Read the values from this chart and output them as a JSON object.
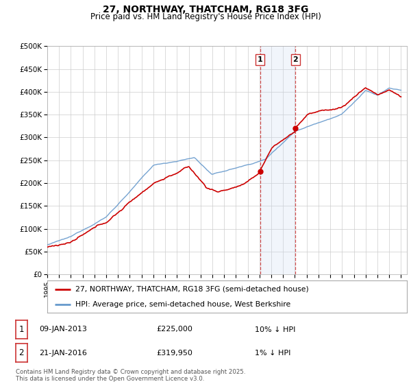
{
  "title": "27, NORTHWAY, THATCHAM, RG18 3FG",
  "subtitle": "Price paid vs. HM Land Registry's House Price Index (HPI)",
  "legend_entries": [
    "27, NORTHWAY, THATCHAM, RG18 3FG (semi-detached house)",
    "HPI: Average price, semi-detached house, West Berkshire"
  ],
  "table_rows": [
    [
      "1",
      "09-JAN-2013",
      "£225,000",
      "10% ↓ HPI"
    ],
    [
      "2",
      "21-JAN-2016",
      "£319,950",
      "1% ↓ HPI"
    ]
  ],
  "footnote": "Contains HM Land Registry data © Crown copyright and database right 2025.\nThis data is licensed under the Open Government Licence v3.0.",
  "ylabel_ticks": [
    "£0",
    "£50K",
    "£100K",
    "£150K",
    "£200K",
    "£250K",
    "£300K",
    "£350K",
    "£400K",
    "£450K",
    "£500K"
  ],
  "ylim": [
    0,
    500000
  ],
  "sale1_price": 225000,
  "sale2_price": 319950,
  "sale1_year": 2013.04,
  "sale2_year": 2016.05,
  "line_color_property": "#cc0000",
  "line_color_hpi": "#6699cc",
  "shade_color": "#ddeeff",
  "vline_color": "#cc3333",
  "background_color": "#ffffff",
  "plot_bg_color": "#ffffff"
}
